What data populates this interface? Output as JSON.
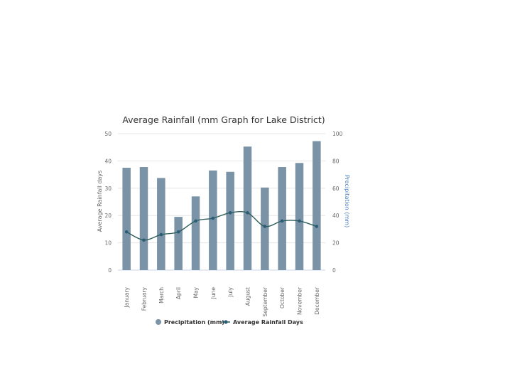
{
  "chart_data": {
    "type": "bar",
    "title": "Average Rainfall (mm Graph for Lake District)",
    "categories": [
      "January",
      "February",
      "March",
      "April",
      "May",
      "June",
      "July",
      "August",
      "September",
      "October",
      "November",
      "December"
    ],
    "series": [
      {
        "name": "Precipitation (mm)",
        "type": "bar",
        "axis": "right",
        "color": "#7a93a6",
        "values": [
          75,
          75.5,
          67.5,
          39,
          54,
          73,
          72,
          90.5,
          60.5,
          75.5,
          78.5,
          94.5
        ]
      },
      {
        "name": "Average Rainfall Days",
        "type": "line",
        "axis": "left",
        "color": "#2e5e5a",
        "marker_color": "#2b5d77",
        "values": [
          14,
          11,
          13,
          14,
          18,
          19,
          21,
          21,
          16,
          18,
          18,
          16
        ]
      }
    ],
    "ylabel": "Average Rainfall days",
    "y2label": "Precipitation (mm)",
    "ylim": [
      0,
      50
    ],
    "y2lim": [
      0,
      100
    ],
    "yticks": [
      "0",
      "10",
      "20",
      "30",
      "40",
      "50"
    ],
    "y2ticks": [
      "0",
      "20",
      "40",
      "60",
      "80",
      "100"
    ],
    "grid": true,
    "legend_position": "bottom"
  }
}
